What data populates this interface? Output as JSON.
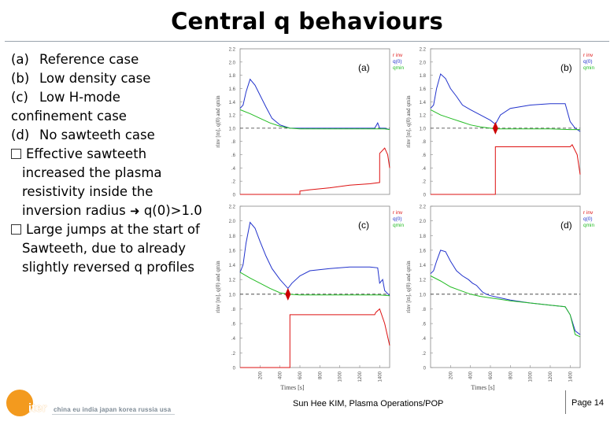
{
  "title": "Central q behaviours",
  "bullets": [
    {
      "marker": "(a)",
      "text": "Reference case"
    },
    {
      "marker": "(b)",
      "text": "Low density case"
    },
    {
      "marker": "(c)",
      "text": "Low H-mode",
      "continuation": "confinement case"
    },
    {
      "marker": "(d)",
      "text": "No sawteeth case"
    }
  ],
  "observations": [
    {
      "lines": [
        "Effective sawteeth",
        "increased the plasma",
        "resistivity inside the",
        "inversion radius"
      ],
      "arrow_tail": "q(0)>1.0"
    },
    {
      "lines": [
        "Large jumps at the start of",
        "Sawteeth, due to already",
        "slightly reversed q profiles"
      ]
    }
  ],
  "chart_data": [
    {
      "panel": "(a)",
      "type": "line",
      "ylabel": "rinv [m], q(0) and qmin",
      "xlabel": "",
      "ylim": [
        0,
        2.2
      ],
      "yticks": [
        "0",
        ".2",
        ".4",
        ".6",
        ".8",
        "1.0",
        "1.2",
        "1.4",
        "1.6",
        "1.8",
        "2.0",
        "2.2"
      ],
      "legend": [
        "r inv",
        "q(0)",
        "qmin"
      ],
      "series": [
        {
          "name": "q(0)",
          "x": [
            0,
            30,
            60,
            100,
            150,
            200,
            260,
            320,
            400,
            500,
            600,
            800,
            1000,
            1200,
            1350,
            1380,
            1400,
            1450,
            1500
          ],
          "values": [
            1.3,
            1.35,
            1.55,
            1.74,
            1.65,
            1.5,
            1.32,
            1.15,
            1.05,
            1.0,
            1.0,
            1.0,
            1.0,
            1.0,
            1.0,
            1.08,
            1.0,
            1.0,
            0.98
          ]
        },
        {
          "name": "qmin",
          "x": [
            0,
            100,
            200,
            300,
            400,
            500,
            600,
            800,
            1000,
            1200,
            1400,
            1450,
            1500
          ],
          "values": [
            1.28,
            1.22,
            1.15,
            1.08,
            1.03,
            1.0,
            0.99,
            0.99,
            0.99,
            0.99,
            0.99,
            0.99,
            0.98
          ]
        },
        {
          "name": "r inv",
          "x": [
            0,
            600,
            600,
            700,
            900,
            1100,
            1300,
            1400,
            1400,
            1450,
            1480,
            1500
          ],
          "values": [
            0,
            0,
            0.05,
            0.07,
            0.1,
            0.14,
            0.16,
            0.18,
            0.62,
            0.7,
            0.6,
            0.4
          ]
        }
      ],
      "annotation": "ref 1.0"
    },
    {
      "panel": "(b)",
      "type": "line",
      "ylabel": "rinv [m], q(0) and qmin",
      "xlabel": "",
      "ylim": [
        0,
        2.2
      ],
      "yticks": [
        "0",
        ".2",
        ".4",
        ".6",
        ".8",
        "1.0",
        "1.2",
        "1.4",
        "1.6",
        "1.8",
        "2.0",
        "2.2"
      ],
      "legend": [
        "r inv",
        "q(0)",
        "qmin"
      ],
      "series": [
        {
          "name": "q(0)",
          "x": [
            0,
            30,
            60,
            100,
            150,
            200,
            260,
            320,
            400,
            500,
            600,
            650,
            700,
            800,
            1000,
            1200,
            1350,
            1400,
            1450,
            1500
          ],
          "values": [
            1.3,
            1.35,
            1.6,
            1.82,
            1.75,
            1.6,
            1.48,
            1.35,
            1.28,
            1.2,
            1.12,
            1.06,
            1.2,
            1.3,
            1.35,
            1.37,
            1.37,
            1.1,
            1.0,
            0.95
          ]
        },
        {
          "name": "qmin",
          "x": [
            0,
            100,
            200,
            300,
            400,
            500,
            600,
            650,
            700,
            800,
            1000,
            1200,
            1400,
            1500
          ],
          "values": [
            1.28,
            1.2,
            1.15,
            1.1,
            1.05,
            1.02,
            1.0,
            0.99,
            0.99,
            0.99,
            0.99,
            0.99,
            0.98,
            0.98
          ]
        },
        {
          "name": "r inv",
          "x": [
            0,
            650,
            650,
            1000,
            1400,
            1420,
            1470,
            1500
          ],
          "values": [
            0,
            0,
            0.72,
            0.72,
            0.72,
            0.75,
            0.6,
            0.3
          ]
        }
      ],
      "annotation": "ref 1.0"
    },
    {
      "panel": "(c)",
      "type": "line",
      "ylabel": "rinv [m], q(0) and qmin",
      "xlabel": "Times [s]",
      "ylim": [
        0,
        2.2
      ],
      "yticks": [
        "0",
        ".2",
        ".4",
        ".6",
        ".8",
        "1.0",
        "1.2",
        "1.4",
        "1.6",
        "1.8",
        "2.0",
        "2.2"
      ],
      "xticks": [
        "200",
        "400",
        "600",
        "800",
        "1000",
        "1200",
        "1400"
      ],
      "legend": [
        "r inv",
        "q(0)",
        "qmin"
      ],
      "series": [
        {
          "name": "q(0)",
          "x": [
            0,
            30,
            60,
            100,
            150,
            200,
            260,
            320,
            400,
            480,
            520,
            600,
            700,
            900,
            1100,
            1300,
            1380,
            1400,
            1430,
            1450,
            1500
          ],
          "values": [
            1.3,
            1.4,
            1.7,
            1.98,
            1.9,
            1.72,
            1.52,
            1.35,
            1.2,
            1.08,
            1.15,
            1.25,
            1.32,
            1.35,
            1.37,
            1.37,
            1.36,
            1.15,
            1.2,
            1.05,
            0.98
          ]
        },
        {
          "name": "qmin",
          "x": [
            0,
            100,
            200,
            300,
            400,
            480,
            600,
            800,
            1000,
            1200,
            1400,
            1500
          ],
          "values": [
            1.3,
            1.22,
            1.15,
            1.08,
            1.02,
            1.0,
            0.99,
            0.99,
            0.99,
            0.99,
            0.99,
            0.98
          ]
        },
        {
          "name": "r inv",
          "x": [
            0,
            500,
            500,
            1000,
            1350,
            1360,
            1400,
            1450,
            1500
          ],
          "values": [
            0,
            0,
            0.72,
            0.72,
            0.72,
            0.75,
            0.8,
            0.6,
            0.3
          ]
        }
      ],
      "annotation": "ref 1.0"
    },
    {
      "panel": "(d)",
      "type": "line",
      "ylabel": "rinv [m], q(0) and qmin",
      "xlabel": "Times [s]",
      "ylim": [
        0,
        2.2
      ],
      "yticks": [
        "0",
        ".2",
        ".4",
        ".6",
        ".8",
        "1.0",
        "1.2",
        "1.4",
        "1.6",
        "1.8",
        "2.0",
        "2.2"
      ],
      "xticks": [
        "200",
        "400",
        "600",
        "800",
        "1000",
        "1200",
        "1400"
      ],
      "legend": [
        "r inv",
        "q(0)",
        "qmin"
      ],
      "series": [
        {
          "name": "q(0)",
          "x": [
            0,
            30,
            60,
            100,
            150,
            200,
            260,
            320,
            380,
            420,
            460,
            520,
            560,
            600,
            700,
            800,
            1000,
            1200,
            1350,
            1400,
            1450,
            1500
          ],
          "values": [
            1.28,
            1.32,
            1.45,
            1.6,
            1.58,
            1.45,
            1.32,
            1.25,
            1.2,
            1.15,
            1.12,
            1.03,
            1.0,
            0.98,
            0.95,
            0.92,
            0.88,
            0.85,
            0.83,
            0.72,
            0.5,
            0.45
          ]
        },
        {
          "name": "qmin",
          "x": [
            0,
            100,
            200,
            300,
            400,
            500,
            600,
            800,
            1000,
            1200,
            1350,
            1400,
            1450,
            1500
          ],
          "values": [
            1.25,
            1.18,
            1.1,
            1.05,
            1.0,
            0.97,
            0.95,
            0.91,
            0.88,
            0.85,
            0.83,
            0.72,
            0.45,
            0.42
          ]
        }
      ],
      "annotation": "ref 1.0"
    }
  ],
  "panel_labels": [
    "(a)",
    "(b)",
    "(c)",
    "(d)"
  ],
  "footer": {
    "text": "Sun Hee KIM, Plasma Operations/POP",
    "page": "Page 14",
    "logo": "iter",
    "members": "china eu india japan korea russia usa"
  },
  "colors": {
    "q0": "#2233cc",
    "qmin": "#22bb22",
    "rinv": "#dd1111",
    "ref": "#333333",
    "logo": "#f39a1e"
  }
}
